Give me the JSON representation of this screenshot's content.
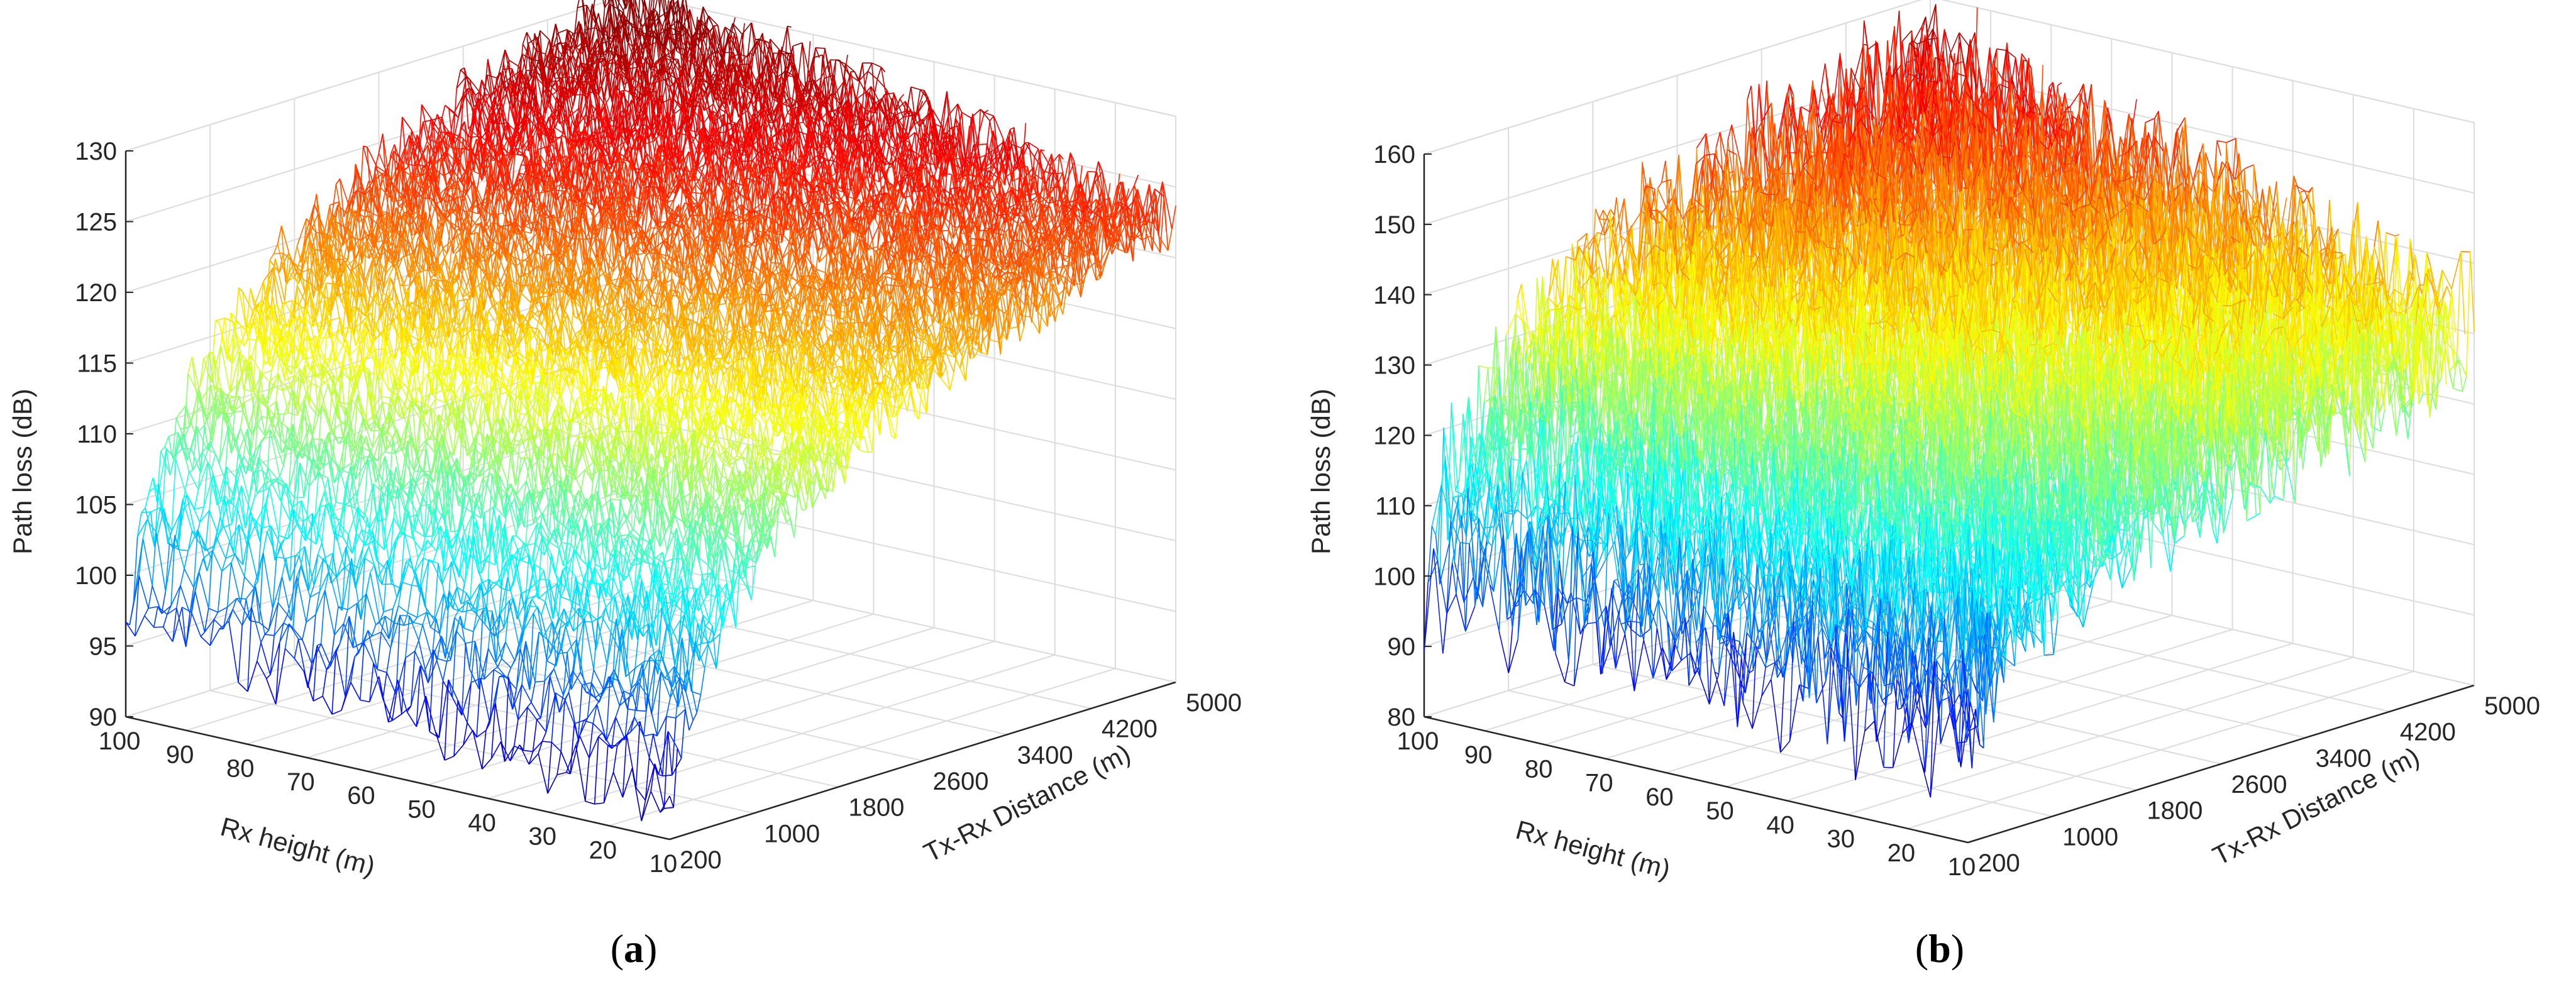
{
  "chart_data": [
    {
      "type": "surface",
      "panel_label_parts": [
        "(",
        "a",
        ")"
      ],
      "zlabel": "Path loss (dB)",
      "xlabel": "Tx-Rx Distance (m)",
      "ylabel": "Rx height (m)",
      "x_ticks": [
        200,
        1000,
        1800,
        2600,
        3400,
        4200,
        5000
      ],
      "y_ticks": [
        10,
        20,
        30,
        40,
        50,
        60,
        70,
        80,
        90,
        100
      ],
      "z_ticks": [
        90,
        95,
        100,
        105,
        110,
        115,
        120,
        125,
        130
      ],
      "xlim": [
        200,
        5000
      ],
      "ylim": [
        10,
        100
      ],
      "zlim": [
        90,
        130
      ],
      "colormap": "jet",
      "color_range_db": [
        90,
        130
      ],
      "grid": true,
      "surface_model": {
        "distance_min_m": 200,
        "distance_max_m": 5000,
        "loss_at_max_height_min_distance_db": 97,
        "loss_at_min_height_min_distance_db": 92,
        "loss_at_max_height_max_distance_db": 130,
        "loss_at_min_height_max_distance_db": 123,
        "noise_amplitude_db": 2.5
      }
    },
    {
      "type": "surface",
      "panel_label_parts": [
        "(",
        "b",
        ")"
      ],
      "zlabel": "Path loss (dB)",
      "xlabel": "Tx-Rx Distance (m)",
      "ylabel": "Rx height (m)",
      "x_ticks": [
        200,
        1000,
        1800,
        2600,
        3400,
        4200,
        5000
      ],
      "y_ticks": [
        10,
        20,
        30,
        40,
        50,
        60,
        70,
        80,
        90,
        100
      ],
      "z_ticks": [
        80,
        90,
        100,
        110,
        120,
        130,
        140,
        150,
        160
      ],
      "xlim": [
        200,
        5000
      ],
      "ylim": [
        10,
        100
      ],
      "zlim": [
        80,
        160
      ],
      "colormap": "jet",
      "color_range_db": [
        85,
        160
      ],
      "grid": true,
      "surface_model": {
        "distance_min_m": 200,
        "distance_max_m": 5000,
        "loss_at_max_height_min_distance_db": 100,
        "loss_at_min_height_min_distance_db": 96,
        "loss_at_max_height_max_distance_db": 150,
        "loss_at_min_height_max_distance_db": 130,
        "noise_amplitude_db": 12
      }
    }
  ]
}
